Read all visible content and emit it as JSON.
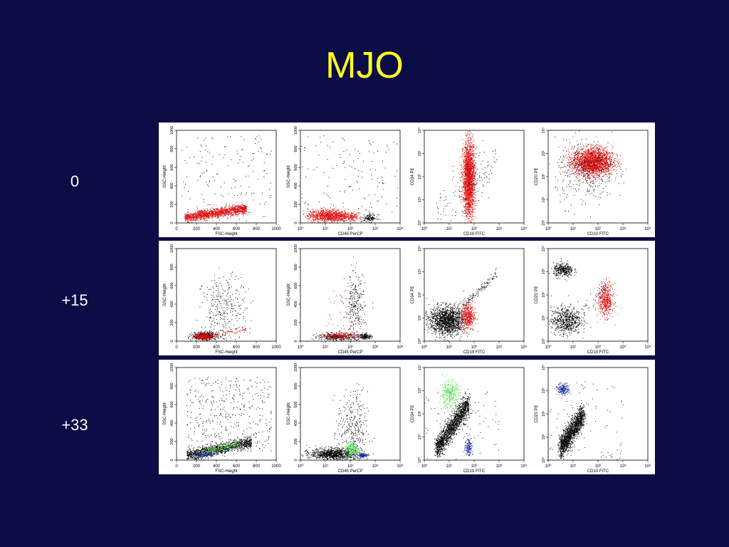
{
  "slide": {
    "title": "MJO"
  },
  "rows": [
    {
      "label": "0"
    },
    {
      "label": "+15"
    },
    {
      "label": "+33"
    }
  ],
  "colors": {
    "background": "#0c0c46",
    "title": "#ffff1e",
    "red_population": "#e01010",
    "green_population": "#55dd55",
    "blue_population": "#1c2aa0",
    "events": "#000000"
  },
  "chart_data": [
    {
      "type": "scatter",
      "layout": "3 rows x 4 columns grid of flow cytometry dot plots",
      "columns": [
        {
          "xlabel": "FSC-Height",
          "ylabel": "SSC-Height",
          "xscale": "linear",
          "yscale": "linear",
          "xlim": [
            0,
            1000
          ],
          "ylim": [
            0,
            1000
          ],
          "xticks": [
            "0",
            "200",
            "400",
            "600",
            "800",
            "1000"
          ],
          "yticks": [
            "0",
            "200",
            "400",
            "600",
            "800",
            "1000"
          ]
        },
        {
          "xlabel": "CD45 PerCP",
          "ylabel": "SSC-Height",
          "xscale": "log",
          "yscale": "linear",
          "xlim": [
            1,
            10000
          ],
          "ylim": [
            0,
            1000
          ],
          "xticks": [
            "10⁰",
            "10¹",
            "10²",
            "10³",
            "10⁴"
          ],
          "yticks": [
            "0",
            "200",
            "400",
            "600",
            "800",
            "1000"
          ]
        },
        {
          "xlabel": "CD19 FITC",
          "ylabel": "CD34 PE",
          "xscale": "log",
          "yscale": "log",
          "xlim": [
            1,
            10000
          ],
          "ylim": [
            1,
            10000
          ],
          "xticks": [
            "10⁰",
            "10¹",
            "10²",
            "10³",
            "10⁴"
          ],
          "yticks": [
            "10⁰",
            "10¹",
            "10²",
            "10³",
            "10⁴"
          ]
        },
        {
          "xlabel": "CD10 FITC",
          "ylabel": "CD20 PE",
          "xscale": "log",
          "yscale": "log",
          "xlim": [
            1,
            10000
          ],
          "ylim": [
            1,
            10000
          ],
          "xticks": [
            "10⁰",
            "10¹",
            "10²",
            "10³",
            "10⁴"
          ],
          "yticks": [
            "10⁰",
            "10¹",
            "10²",
            "10³",
            "10⁴"
          ]
        }
      ],
      "rows": [
        {
          "label": "0",
          "plots": [
            {
              "populations": [
                {
                  "color": "red",
                  "n": 1500,
                  "shape": "band",
                  "x": [
                    80,
                    700
                  ],
                  "y": [
                    60,
                    160
                  ],
                  "sx": 0,
                  "sy": 25
                },
                {
                  "color": "black",
                  "n": 160,
                  "shape": "uniform",
                  "x": [
                    50,
                    950
                  ],
                  "y": [
                    20,
                    950
                  ]
                }
              ]
            },
            {
              "populations": [
                {
                  "color": "red",
                  "n": 900,
                  "shape": "gauss",
                  "cx": 12,
                  "cy": 80,
                  "sx": 0.4,
                  "sy": 35
                },
                {
                  "color": "red",
                  "n": 200,
                  "shape": "gauss",
                  "cx": 80,
                  "cy": 70,
                  "sx": 0.3,
                  "sy": 25
                },
                {
                  "color": "black",
                  "n": 120,
                  "shape": "gauss",
                  "cx": 600,
                  "cy": 55,
                  "sx": 0.15,
                  "sy": 20
                },
                {
                  "color": "black",
                  "n": 130,
                  "shape": "uniform",
                  "x": [
                    1,
                    8000
                  ],
                  "y": [
                    100,
                    950
                  ]
                }
              ]
            },
            {
              "populations": [
                {
                  "color": "red",
                  "n": 2200,
                  "shape": "gauss",
                  "cx": 60,
                  "cy": 80,
                  "sx": 0.12,
                  "sy": 0.8
                },
                {
                  "color": "black",
                  "n": 140,
                  "shape": "band",
                  "x": [
                    3,
                    800
                  ],
                  "y": [
                    3,
                    600
                  ],
                  "sx": 0,
                  "sy": 0.5
                }
              ]
            },
            {
              "populations": [
                {
                  "color": "red",
                  "n": 2200,
                  "shape": "gauss",
                  "cx": 60,
                  "cy": 450,
                  "sx": 0.4,
                  "sy": 0.3
                },
                {
                  "color": "black",
                  "n": 350,
                  "shape": "gauss",
                  "cx": 30,
                  "cy": 150,
                  "sx": 0.6,
                  "sy": 0.7
                }
              ]
            }
          ]
        },
        {
          "label": "+15",
          "plots": [
            {
              "populations": [
                {
                  "color": "black",
                  "n": 500,
                  "shape": "gauss",
                  "cx": 280,
                  "cy": 60,
                  "sx": 60,
                  "sy": 20
                },
                {
                  "color": "black",
                  "n": 300,
                  "shape": "gauss",
                  "cx": 480,
                  "cy": 350,
                  "sx": 110,
                  "sy": 180
                },
                {
                  "color": "red",
                  "n": 250,
                  "shape": "gauss",
                  "cx": 270,
                  "cy": 55,
                  "sx": 50,
                  "sy": 18
                },
                {
                  "color": "red",
                  "n": 120,
                  "shape": "band",
                  "x": [
                    200,
                    700
                  ],
                  "y": [
                    40,
                    130
                  ],
                  "sx": 0,
                  "sy": 15
                }
              ]
            },
            {
              "populations": [
                {
                  "color": "black",
                  "n": 350,
                  "shape": "gauss",
                  "cx": 30,
                  "cy": 50,
                  "sx": 0.4,
                  "sy": 18
                },
                {
                  "color": "red",
                  "n": 220,
                  "shape": "gauss",
                  "cx": 40,
                  "cy": 60,
                  "sx": 0.35,
                  "sy": 20
                },
                {
                  "color": "black",
                  "n": 260,
                  "shape": "gauss",
                  "cx": 150,
                  "cy": 350,
                  "sx": 0.2,
                  "sy": 200
                },
                {
                  "color": "black",
                  "n": 150,
                  "shape": "gauss",
                  "cx": 400,
                  "cy": 55,
                  "sx": 0.12,
                  "sy": 15
                },
                {
                  "color": "red",
                  "n": 50,
                  "shape": "uniform",
                  "x": [
                    10,
                    300
                  ],
                  "y": [
                    50,
                    600
                  ]
                }
              ]
            },
            {
              "populations": [
                {
                  "color": "black",
                  "n": 1500,
                  "shape": "gauss",
                  "cx": 8,
                  "cy": 8,
                  "sx": 0.35,
                  "sy": 0.3
                },
                {
                  "color": "red",
                  "n": 450,
                  "shape": "gauss",
                  "cx": 55,
                  "cy": 12,
                  "sx": 0.14,
                  "sy": 0.3
                },
                {
                  "color": "black",
                  "n": 120,
                  "shape": "band",
                  "x": [
                    30,
                    800
                  ],
                  "y": [
                    30,
                    800
                  ],
                  "sx": 0,
                  "sy": 0.1
                }
              ]
            },
            {
              "populations": [
                {
                  "color": "black",
                  "n": 600,
                  "shape": "gauss",
                  "cx": 5,
                  "cy": 8,
                  "sx": 0.3,
                  "sy": 0.3
                },
                {
                  "color": "black",
                  "n": 350,
                  "shape": "gauss",
                  "cx": 4,
                  "cy": 1200,
                  "sx": 0.2,
                  "sy": 0.15
                },
                {
                  "color": "red",
                  "n": 500,
                  "shape": "gauss",
                  "cx": 200,
                  "cy": 60,
                  "sx": 0.15,
                  "sy": 0.35
                },
                {
                  "color": "black",
                  "n": 80,
                  "shape": "band",
                  "x": [
                    5,
                    200
                  ],
                  "y": [
                    5,
                    200
                  ],
                  "sx": 0,
                  "sy": 0.2
                }
              ]
            }
          ]
        },
        {
          "label": "+33",
          "plots": [
            {
              "populations": [
                {
                  "color": "black",
                  "n": 1200,
                  "shape": "band",
                  "x": [
                    100,
                    750
                  ],
                  "y": [
                    50,
                    200
                  ],
                  "sx": 0,
                  "sy": 30
                },
                {
                  "color": "black",
                  "n": 400,
                  "shape": "uniform",
                  "x": [
                    100,
                    950
                  ],
                  "y": [
                    100,
                    900
                  ]
                },
                {
                  "color": "green",
                  "n": 200,
                  "shape": "band",
                  "x": [
                    250,
                    650
                  ],
                  "y": [
                    80,
                    200
                  ],
                  "sx": 0,
                  "sy": 20
                },
                {
                  "color": "blue",
                  "n": 120,
                  "shape": "gauss",
                  "cx": 280,
                  "cy": 60,
                  "sx": 60,
                  "sy": 12
                }
              ]
            },
            {
              "populations": [
                {
                  "color": "black",
                  "n": 900,
                  "shape": "gauss",
                  "cx": 20,
                  "cy": 70,
                  "sx": 0.45,
                  "sy": 30
                },
                {
                  "color": "black",
                  "n": 350,
                  "shape": "gauss",
                  "cx": 120,
                  "cy": 300,
                  "sx": 0.3,
                  "sy": 220
                },
                {
                  "color": "green",
                  "n": 220,
                  "shape": "gauss",
                  "cx": 120,
                  "cy": 120,
                  "sx": 0.15,
                  "sy": 45
                },
                {
                  "color": "blue",
                  "n": 120,
                  "shape": "gauss",
                  "cx": 300,
                  "cy": 55,
                  "sx": 0.1,
                  "sy": 12
                }
              ]
            },
            {
              "populations": [
                {
                  "color": "black",
                  "n": 1600,
                  "shape": "band",
                  "x": [
                    3,
                    60
                  ],
                  "y": [
                    3,
                    300
                  ],
                  "sx": 0.05,
                  "sy": 0.25
                },
                {
                  "color": "green",
                  "n": 350,
                  "shape": "gauss",
                  "cx": 10,
                  "cy": 700,
                  "sx": 0.2,
                  "sy": 0.3
                },
                {
                  "color": "blue",
                  "n": 150,
                  "shape": "gauss",
                  "cx": 60,
                  "cy": 4,
                  "sx": 0.08,
                  "sy": 0.2
                },
                {
                  "color": "black",
                  "n": 70,
                  "shape": "uniform",
                  "x": [
                    1,
                    1000
                  ],
                  "y": [
                    1,
                    1000
                  ]
                }
              ]
            },
            {
              "populations": [
                {
                  "color": "black",
                  "n": 1500,
                  "shape": "band",
                  "x": [
                    3,
                    25
                  ],
                  "y": [
                    3,
                    100
                  ],
                  "sx": 0.05,
                  "sy": 0.25
                },
                {
                  "color": "blue",
                  "n": 200,
                  "shape": "gauss",
                  "cx": 4,
                  "cy": 1200,
                  "sx": 0.12,
                  "sy": 0.12
                },
                {
                  "color": "black",
                  "n": 80,
                  "shape": "uniform",
                  "x": [
                    1,
                    1000
                  ],
                  "y": [
                    1,
                    3000
                  ]
                }
              ]
            }
          ]
        }
      ]
    }
  ]
}
